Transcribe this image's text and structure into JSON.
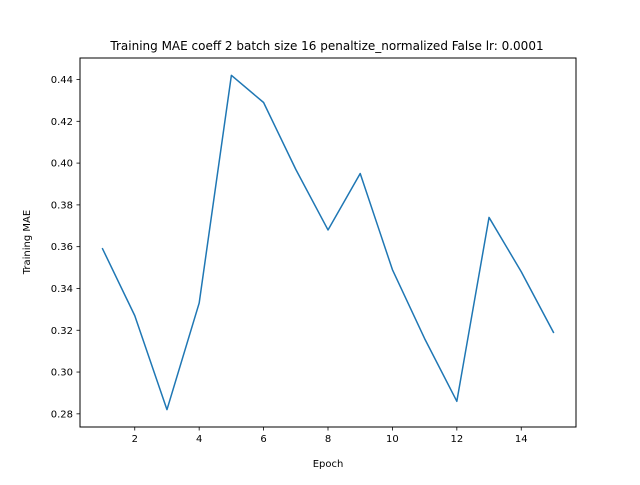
{
  "chart_data": {
    "type": "line",
    "title": "Training MAE coeff 2 batch size 16 penaltize_normalized False lr: 0.0001",
    "xlabel": "Epoch",
    "ylabel": "Training MAE",
    "xlim": [
      0.3,
      15.7
    ],
    "ylim": [
      0.2737,
      0.4503
    ],
    "x_ticks": [
      2,
      4,
      6,
      8,
      10,
      12,
      14
    ],
    "y_ticks": [
      0.28,
      0.3,
      0.32,
      0.34,
      0.36,
      0.38,
      0.4,
      0.42,
      0.44
    ],
    "grid": false,
    "series": [
      {
        "name": "",
        "color": "#1f77b4",
        "x": [
          1,
          2,
          3,
          4,
          5,
          6,
          7,
          8,
          9,
          10,
          11,
          12,
          13,
          14,
          15
        ],
        "y": [
          0.359,
          0.327,
          0.282,
          0.333,
          0.442,
          0.429,
          0.397,
          0.368,
          0.395,
          0.349,
          0.316,
          0.286,
          0.374,
          0.348,
          0.319
        ]
      }
    ]
  }
}
